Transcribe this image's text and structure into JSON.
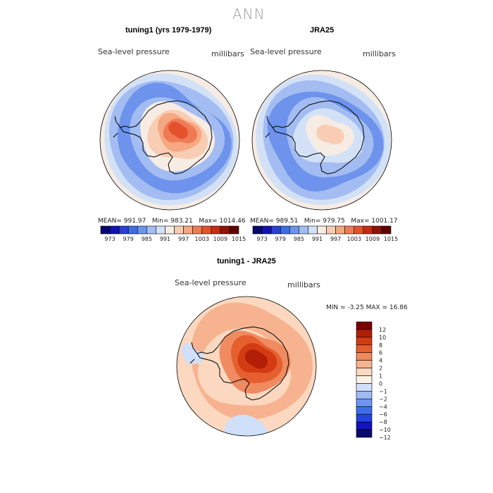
{
  "figure": {
    "main_title": "ANN",
    "panels": [
      {
        "title": "tuning1 (yrs 1979-1979)",
        "variable": "Sea-level pressure",
        "units": "millibars",
        "stats": {
          "mean_label": "MEAN=",
          "mean": "991.97",
          "min_label": "Min=",
          "min": "983.21",
          "max_label": "Max=",
          "max": "1014.46"
        }
      },
      {
        "title": "JRA25",
        "variable": "Sea-level pressure",
        "units": "millibars",
        "stats": {
          "mean_label": "MEAN=",
          "mean": "989.51",
          "min_label": "Min=",
          "min": "979.75",
          "max_label": "Max=",
          "max": "1001.17"
        }
      },
      {
        "title": "tuning1 - JRA25",
        "variable": "Sea-level pressure",
        "units": "millibars",
        "stats": {
          "min_label": "MIN =",
          "min": "-3.25",
          "max_label": "MAX =",
          "max": "16.86"
        }
      }
    ]
  },
  "colors": {
    "abs_scale": [
      "#08086e",
      "#1212b4",
      "#2a3fd6",
      "#3d6ee6",
      "#6d93ec",
      "#a3bdf2",
      "#d3e1f7",
      "#f6ece4",
      "#f9cdb3",
      "#f5a882",
      "#ef7b55",
      "#e4522d",
      "#c82a13",
      "#931105",
      "#5e0000"
    ],
    "diff_scale": [
      "#0a0a6e",
      "#1212c0",
      "#2443e0",
      "#3e6de8",
      "#6e95ee",
      "#9fbaf3",
      "#d0dffa",
      "#fdf1e6",
      "#fbd8bf",
      "#f7b390",
      "#f08a60",
      "#e6602f",
      "#d33b12",
      "#b21e06",
      "#7a0000"
    ],
    "coastline": "#000000"
  },
  "chart_data": [
    {
      "type": "heatmap",
      "projection": "south-polar-stereographic",
      "title": "tuning1 (yrs 1979-1979)",
      "variable": "Sea-level pressure",
      "units": "millibars",
      "mean": 991.97,
      "min": 983.21,
      "max": 1014.46,
      "contour_levels": [
        973,
        976,
        979,
        982,
        985,
        988,
        991,
        994,
        997,
        1000,
        1003,
        1006,
        1009,
        1012,
        1015
      ],
      "colorbar_tick_labels": [
        "973",
        "979",
        "985",
        "991",
        "997",
        "1003",
        "1009",
        "1015"
      ]
    },
    {
      "type": "heatmap",
      "projection": "south-polar-stereographic",
      "title": "JRA25",
      "variable": "Sea-level pressure",
      "units": "millibars",
      "mean": 989.51,
      "min": 979.75,
      "max": 1001.17,
      "contour_levels": [
        973,
        976,
        979,
        982,
        985,
        988,
        991,
        994,
        997,
        1000,
        1003,
        1006,
        1009,
        1012,
        1015
      ],
      "colorbar_tick_labels": [
        "973",
        "979",
        "985",
        "991",
        "997",
        "1003",
        "1009",
        "1015"
      ]
    },
    {
      "type": "heatmap",
      "projection": "south-polar-stereographic",
      "title": "tuning1 - JRA25",
      "variable": "Sea-level pressure",
      "units": "millibars",
      "min": -3.25,
      "max": 16.86,
      "contour_levels": [
        -12,
        -10,
        -8,
        -6,
        -4,
        -2,
        -1,
        0,
        1,
        2,
        4,
        6,
        8,
        10,
        12
      ],
      "colorbar_tick_labels": [
        "12",
        "10",
        "8",
        "6",
        "4",
        "2",
        "1",
        "0",
        "−1",
        "−2",
        "−4",
        "−6",
        "−8",
        "−10",
        "−12"
      ]
    }
  ]
}
